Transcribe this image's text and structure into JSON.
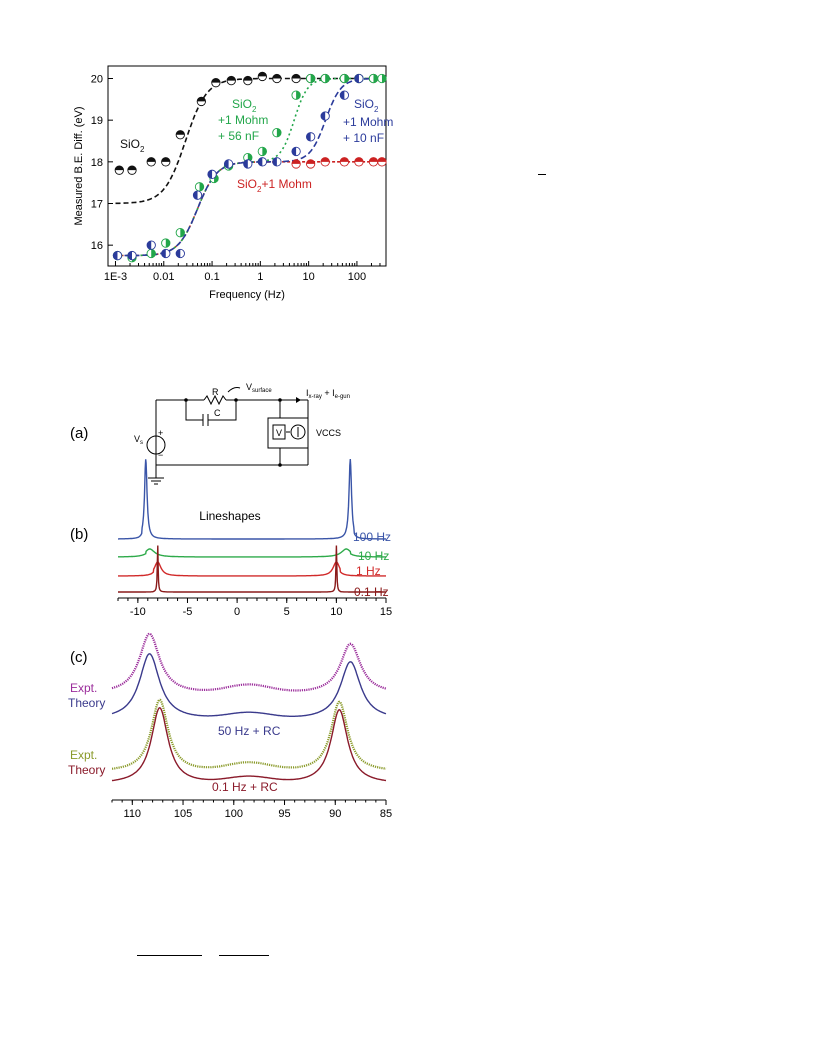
{
  "colors": {
    "black": "#111111",
    "green": "#22a64a",
    "blue": "#2b3b9b",
    "red": "#cc2222",
    "lines_100hz": "#3a55a8",
    "lines_10hz": "#2eaa4a",
    "lines_1hz": "#d12a2a",
    "lines_01hz": "#8a1a1a",
    "expt_top": "#9b2d9b",
    "theory_top": "#3a3a8c",
    "expt_bottom": "#8a9a2a",
    "theory_bottom": "#8a1a2a"
  },
  "chart_data": [
    {
      "type": "scatter",
      "xlabel": "Frequency (Hz)",
      "ylabel": "Measured B.E. Diff.  (eV)",
      "xscale": "log",
      "xlim": [
        0.0007,
        400
      ],
      "ylim": [
        15.5,
        20.3
      ],
      "xticks": [
        "1E-3",
        "0.01",
        "0.1",
        "1",
        "10",
        "100"
      ],
      "yticks": [
        "16",
        "17",
        "18",
        "19",
        "20"
      ],
      "annotations": [
        {
          "name": "sio2",
          "text": "SiO",
          "sub": "2"
        },
        {
          "name": "green-l1",
          "text": "SiO",
          "sub": "2"
        },
        {
          "name": "green-l2",
          "text": "+1 Mohm"
        },
        {
          "name": "green-l3",
          "text": "+ 56 nF"
        },
        {
          "name": "blue-l1",
          "text": "SiO",
          "sub": "2"
        },
        {
          "name": "blue-l2",
          "text": "+1 Mohm"
        },
        {
          "name": "blue-l3",
          "text": "+ 10 nF"
        },
        {
          "name": "red-l1",
          "text": "SiO",
          "sub": "2",
          "tail": "+1 Mohm"
        }
      ],
      "series": [
        {
          "key": "black",
          "x": [
            0.0012,
            0.0022,
            0.0055,
            0.011,
            0.022,
            0.06,
            0.12,
            0.25,
            0.55,
            1.1,
            2.2,
            5.5,
            11,
            22,
            55,
            110,
            220
          ],
          "y": [
            17.8,
            17.8,
            18.0,
            18.0,
            18.65,
            19.45,
            19.9,
            19.95,
            19.95,
            20.05,
            20.0,
            20.0,
            20.0,
            20.0,
            20.0,
            20.0,
            20.0
          ]
        },
        {
          "key": "green",
          "x": [
            0.0011,
            0.0022,
            0.0055,
            0.011,
            0.022,
            0.055,
            0.11,
            0.22,
            0.55,
            1.1,
            2.2,
            5.5,
            11,
            22,
            55,
            110,
            220,
            330
          ],
          "y": [
            15.75,
            15.7,
            15.8,
            16.05,
            16.3,
            17.4,
            17.6,
            17.9,
            18.1,
            18.25,
            18.7,
            19.6,
            20.0,
            20.0,
            20.0,
            20.0,
            20.0,
            20.0
          ]
        },
        {
          "key": "blue",
          "x": [
            0.0011,
            0.0022,
            0.0055,
            0.011,
            0.022,
            0.05,
            0.1,
            0.22,
            0.55,
            1.1,
            2.2,
            5.5,
            11,
            22,
            55,
            110
          ],
          "y": [
            15.75,
            15.75,
            16.0,
            15.8,
            15.8,
            17.2,
            17.7,
            17.95,
            17.95,
            18.0,
            18.0,
            18.25,
            18.6,
            19.1,
            19.6,
            20.0
          ]
        },
        {
          "key": "red",
          "x": [
            5.5,
            11,
            22,
            55,
            110,
            220,
            330
          ],
          "y": [
            17.95,
            17.95,
            18.0,
            18.0,
            18.0,
            18.0,
            18.0
          ]
        }
      ]
    },
    {
      "type": "diagram",
      "panel_label": "(a)",
      "labels": {
        "R": "R",
        "C": "C",
        "Vs": "V",
        "Vs_sub": "s",
        "plus": "+",
        "minus": "−",
        "Vsurface": "V",
        "Vsurface_sub": "surface",
        "Ixray": "I",
        "Ixray_sub": "x-ray",
        "plus_sign": " + I",
        "Iegun_sub": "e-gun",
        "V": "V",
        "VCCS": "VCCS"
      }
    },
    {
      "type": "line",
      "panel_label": "(b)",
      "title": "Lineshapes",
      "xlim": [
        -12,
        15
      ],
      "xticks": [
        "-10",
        "-5",
        "0",
        "5",
        "10",
        "15"
      ],
      "series": [
        {
          "name": "100 Hz",
          "key": "lines_100hz",
          "baseline": 3,
          "peaks": [
            -9.2,
            11.4
          ],
          "width": 0.15,
          "height": 1.0
        },
        {
          "name": "10 Hz",
          "key": "lines_10hz",
          "baseline": 2,
          "peaks": [
            -8.8,
            11.0
          ],
          "width": 0.6,
          "height": 0.4
        },
        {
          "name": "1 Hz",
          "key": "lines_1hz",
          "baseline": 1,
          "peaks": [
            -8.0,
            10.0
          ],
          "width": 0.4,
          "height": 0.25
        },
        {
          "name": "0.1 Hz",
          "key": "lines_01hz",
          "baseline": 0,
          "peaks": [
            -8.0,
            10.0
          ],
          "width": 0.05,
          "height": 2.6
        }
      ]
    },
    {
      "type": "line",
      "panel_label": "(c)",
      "xlim": [
        112,
        85
      ],
      "xticks": [
        "110",
        "105",
        "100",
        "95",
        "90",
        "85"
      ],
      "groups": [
        {
          "label": "50 Hz + RC",
          "expt": "Expt.",
          "theory": "Theory",
          "peaks": [
            108.3,
            88.5
          ]
        },
        {
          "label": "0.1 Hz + RC",
          "expt": "Expt.",
          "theory": "Theory",
          "peaks": [
            107.3,
            89.6
          ]
        }
      ]
    }
  ]
}
